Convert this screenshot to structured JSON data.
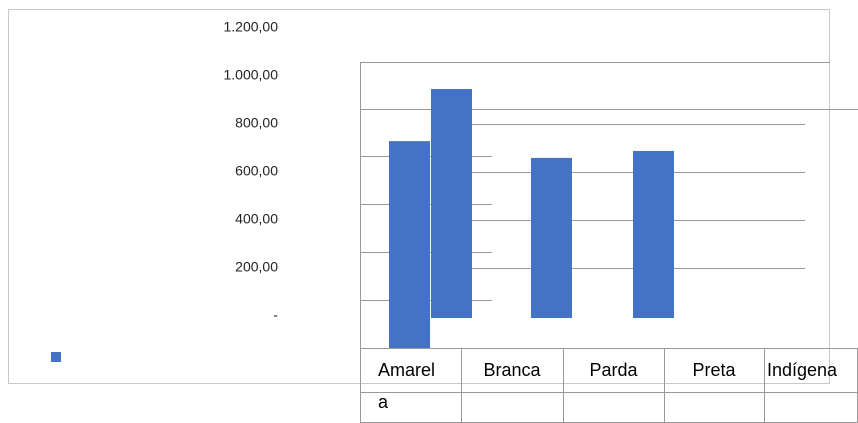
{
  "chart_data": {
    "type": "bar",
    "categories": [
      "Amarela",
      "Branca",
      "Parda",
      "Preta",
      "Indígena"
    ],
    "values": [
      862,
      954,
      667,
      696,
      null
    ],
    "color": "#4472c4",
    "ylim": [
      0,
      1200
    ],
    "yticks": [
      {
        "value": 0,
        "label": "-"
      },
      {
        "value": 200,
        "label": "200,00"
      },
      {
        "value": 400,
        "label": "400,00"
      },
      {
        "value": 600,
        "label": "600,00"
      },
      {
        "value": 800,
        "label": "800,00"
      },
      {
        "value": 1000,
        "label": "1.000,00"
      },
      {
        "value": 1200,
        "label": "1.200,00"
      }
    ],
    "grid": true
  }
}
